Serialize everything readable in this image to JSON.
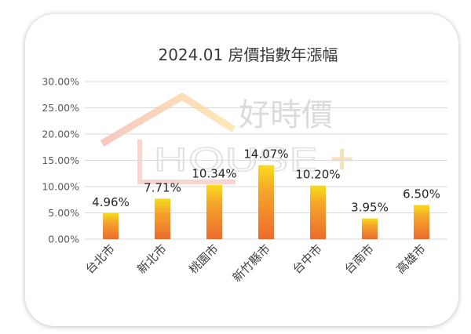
{
  "watermark": {
    "name_cn": "好時價",
    "name_en": "HOUSE",
    "plus": "+"
  },
  "colors": {
    "bar_top": "#f7dc1c",
    "bar_bottom": "#ec6b2c",
    "grid": "#d9d9d9"
  },
  "chart_data": {
    "type": "bar",
    "title": "2024.01 房價指數年漲幅",
    "xlabel": "",
    "ylabel": "",
    "categories": [
      "台北市",
      "新北市",
      "桃園市",
      "新竹縣市",
      "台中市",
      "台南市",
      "高雄市"
    ],
    "values": [
      4.96,
      7.71,
      10.34,
      14.07,
      10.2,
      3.95,
      6.5
    ],
    "data_labels": [
      "4.96%",
      "7.71%",
      "10.34%",
      "14.07%",
      "10.20%",
      "3.95%",
      "6.50%"
    ],
    "ylim": [
      0,
      30
    ],
    "yticks": [
      0,
      5,
      10,
      15,
      20,
      25,
      30
    ],
    "ytick_labels": [
      "0.00%",
      "5.00%",
      "10.00%",
      "15.00%",
      "20.00%",
      "25.00%",
      "30.00%"
    ],
    "grid": true,
    "legend": "none"
  }
}
